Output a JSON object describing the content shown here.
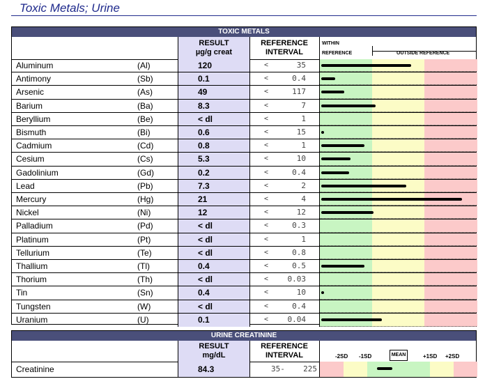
{
  "title": "Toxic Metals; Urine",
  "toxic": {
    "section_title": "TOXIC METALS",
    "result_header_1": "RESULT",
    "result_header_2": "µg/g creat",
    "ref_header_1": "REFERENCE",
    "ref_header_2": "INTERVAL",
    "within_label_1": "WITHIN",
    "within_label_2": "REFERENCE",
    "outside_label": "OUTSIDE REFERENCE",
    "rows": [
      {
        "name": "Aluminum",
        "symbol": "(Al)",
        "result": "120",
        "lt": "<",
        "ref": "35",
        "bar": 0.58
      },
      {
        "name": "Antimony",
        "symbol": "(Sb)",
        "result": "0.1",
        "lt": "<",
        "ref": "0.4",
        "bar": 0.09
      },
      {
        "name": "Arsenic",
        "symbol": "(As)",
        "result": "49",
        "lt": "<",
        "ref": "117",
        "bar": 0.15
      },
      {
        "name": "Barium",
        "symbol": "(Ba)",
        "result": "8.3",
        "lt": "<",
        "ref": "7",
        "bar": 0.35
      },
      {
        "name": "Beryllium",
        "symbol": "(Be)",
        "result": "< dl",
        "lt": "<",
        "ref": "1",
        "bar": 0
      },
      {
        "name": "Bismuth",
        "symbol": "(Bi)",
        "result": "0.6",
        "lt": "<",
        "ref": "15",
        "bar": 0.02
      },
      {
        "name": "Cadmium",
        "symbol": "(Cd)",
        "result": "0.8",
        "lt": "<",
        "ref": "1",
        "bar": 0.28
      },
      {
        "name": "Cesium",
        "symbol": "(Cs)",
        "result": "5.3",
        "lt": "<",
        "ref": "10",
        "bar": 0.19
      },
      {
        "name": "Gadolinium",
        "symbol": "(Gd)",
        "result": "0.2",
        "lt": "<",
        "ref": "0.4",
        "bar": 0.18
      },
      {
        "name": "Lead",
        "symbol": "(Pb)",
        "result": "7.3",
        "lt": "<",
        "ref": "2",
        "bar": 0.55
      },
      {
        "name": "Mercury",
        "symbol": "(Hg)",
        "result": "21",
        "lt": "<",
        "ref": "4",
        "bar": 0.91
      },
      {
        "name": "Nickel",
        "symbol": "(Ni)",
        "result": "12",
        "lt": "<",
        "ref": "12",
        "bar": 0.34
      },
      {
        "name": "Palladium",
        "symbol": "(Pd)",
        "result": "< dl",
        "lt": "<",
        "ref": "0.3",
        "bar": 0
      },
      {
        "name": "Platinum",
        "symbol": "(Pt)",
        "result": "< dl",
        "lt": "<",
        "ref": "1",
        "bar": 0
      },
      {
        "name": "Tellurium",
        "symbol": "(Te)",
        "result": "< dl",
        "lt": "<",
        "ref": "0.8",
        "bar": 0
      },
      {
        "name": "Thallium",
        "symbol": "(Tl)",
        "result": "0.4",
        "lt": "<",
        "ref": "0.5",
        "bar": 0.28
      },
      {
        "name": "Thorium",
        "symbol": "(Th)",
        "result": "< dl",
        "lt": "<",
        "ref": "0.03",
        "bar": 0
      },
      {
        "name": "Tin",
        "symbol": "(Sn)",
        "result": "0.4",
        "lt": "<",
        "ref": "10",
        "bar": 0.02
      },
      {
        "name": "Tungsten",
        "symbol": "(W)",
        "result": "< dl",
        "lt": "<",
        "ref": "0.4",
        "bar": 0
      },
      {
        "name": "Uranium",
        "symbol": "(U)",
        "result": "0.1",
        "lt": "<",
        "ref": "0.04",
        "bar": 0.39
      }
    ]
  },
  "creatinine": {
    "section_title": "URINE CREATININE",
    "result_header_1": "RESULT",
    "result_header_2": "mg/dL",
    "ref_header_1": "REFERENCE",
    "ref_header_2": "INTERVAL",
    "sd_labels": [
      "-2SD",
      "-1SD",
      "MEAN",
      "+1SD",
      "+2SD"
    ],
    "row": {
      "name": "Creatinine",
      "result": "84.3",
      "ref_low": "35-",
      "ref_high": "225"
    }
  },
  "colors": {
    "green": "#c8f5c2",
    "yellow": "#fcfcc6",
    "red": "#fccaca",
    "header": "#4a4f7a",
    "result_bg": "#dedcf5"
  }
}
